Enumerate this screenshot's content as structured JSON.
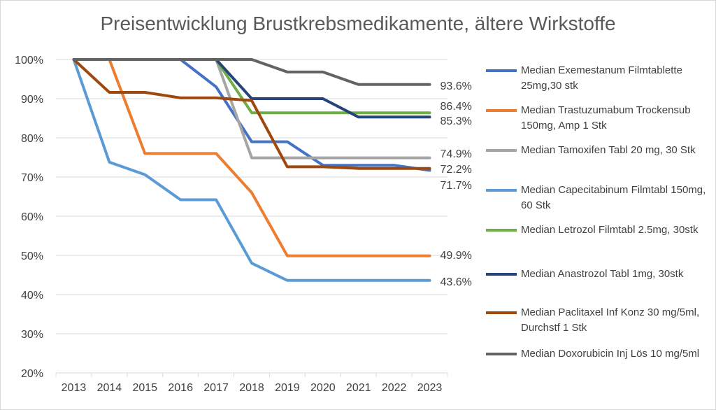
{
  "chart_data": {
    "type": "line",
    "title": "Preisentwicklung Brustkrebsmedikamente, ältere Wirkstoffe",
    "x": [
      "2013",
      "2014",
      "2015",
      "2016",
      "2017",
      "2018",
      "2019",
      "2020",
      "2021",
      "2022",
      "2023"
    ],
    "ylim": [
      0.2,
      1.0
    ],
    "yticks": [
      "20%",
      "30%",
      "40%",
      "50%",
      "60%",
      "70%",
      "80%",
      "90%",
      "100%"
    ],
    "grid": "horizontal",
    "legend_position": "right",
    "series": [
      {
        "name": "Median Exemestanum Filmtablette 25mg,30 stk",
        "color": "#4472c4",
        "points": [
          [
            0,
            1.0
          ],
          [
            1,
            1.0
          ],
          [
            2,
            1.0
          ],
          [
            3,
            1.0
          ],
          [
            4,
            0.93
          ],
          [
            5,
            0.79
          ],
          [
            6,
            0.79
          ],
          [
            7,
            0.73
          ],
          [
            8,
            0.73
          ],
          [
            9,
            0.73
          ],
          [
            10,
            0.717
          ]
        ],
        "end_label": "71.7%"
      },
      {
        "name": "Median Trastuzumabum Trockensub 150mg, Amp 1 Stk",
        "color": "#ed7d31",
        "points": [
          [
            1,
            1.0
          ],
          [
            2,
            0.76
          ],
          [
            3,
            0.76
          ],
          [
            4,
            0.76
          ],
          [
            5,
            0.66
          ],
          [
            6,
            0.499
          ],
          [
            7,
            0.499
          ],
          [
            8,
            0.499
          ],
          [
            9,
            0.499
          ],
          [
            10,
            0.499
          ]
        ],
        "end_label": "49.9%"
      },
      {
        "name": "Median Tamoxifen Tabl 20 mg, 30 Stk",
        "color": "#a5a5a5",
        "points": [
          [
            4,
            1.0
          ],
          [
            5,
            0.749
          ],
          [
            6,
            0.749
          ],
          [
            7,
            0.749
          ],
          [
            8,
            0.749
          ],
          [
            9,
            0.749
          ],
          [
            10,
            0.749
          ]
        ],
        "end_label": "74.9%"
      },
      {
        "name": "Median Capecitabinum Filmtabl 150mg, 60 Stk",
        "color": "#5b9bd5",
        "points": [
          [
            0,
            1.0
          ],
          [
            1,
            0.738
          ],
          [
            2,
            0.706
          ],
          [
            3,
            0.642
          ],
          [
            4,
            0.642
          ],
          [
            5,
            0.48
          ],
          [
            6,
            0.436
          ],
          [
            7,
            0.436
          ],
          [
            8,
            0.436
          ],
          [
            9,
            0.436
          ],
          [
            10,
            0.436
          ]
        ],
        "end_label": "43.6%"
      },
      {
        "name": "Median Letrozol Filmtabl 2.5mg, 30stk",
        "color": "#70ad47",
        "points": [
          [
            4,
            1.0
          ],
          [
            5,
            0.864
          ],
          [
            6,
            0.864
          ],
          [
            7,
            0.864
          ],
          [
            8,
            0.864
          ],
          [
            9,
            0.864
          ],
          [
            10,
            0.864
          ]
        ],
        "end_label": "86.4%"
      },
      {
        "name": "Median Anastrozol Tabl 1mg, 30stk",
        "color": "#264478",
        "points": [
          [
            4,
            1.0
          ],
          [
            5,
            0.9
          ],
          [
            6,
            0.9
          ],
          [
            7,
            0.9
          ],
          [
            8,
            0.853
          ],
          [
            9,
            0.853
          ],
          [
            10,
            0.853
          ]
        ],
        "end_label": "85.3%"
      },
      {
        "name": "Median Paclitaxel Inf Konz 30 mg/5ml, Durchstf 1 Stk",
        "color": "#9e480e",
        "points": [
          [
            0,
            1.0
          ],
          [
            1,
            0.916
          ],
          [
            2,
            0.916
          ],
          [
            3,
            0.902
          ],
          [
            4,
            0.902
          ],
          [
            5,
            0.895
          ],
          [
            6,
            0.726
          ],
          [
            7,
            0.726
          ],
          [
            8,
            0.722
          ],
          [
            9,
            0.722
          ],
          [
            10,
            0.722
          ]
        ],
        "end_label": "72.2%"
      },
      {
        "name": "Median Doxorubicin  Inj Lös 10 mg/5ml",
        "color": "#636363",
        "points": [
          [
            0,
            1.0
          ],
          [
            1,
            1.0
          ],
          [
            2,
            1.0
          ],
          [
            3,
            1.0
          ],
          [
            4,
            1.0
          ],
          [
            5,
            1.0
          ],
          [
            6,
            0.968
          ],
          [
            7,
            0.968
          ],
          [
            8,
            0.936
          ],
          [
            9,
            0.936
          ],
          [
            10,
            0.936
          ]
        ],
        "end_label": "93.6%"
      }
    ]
  }
}
